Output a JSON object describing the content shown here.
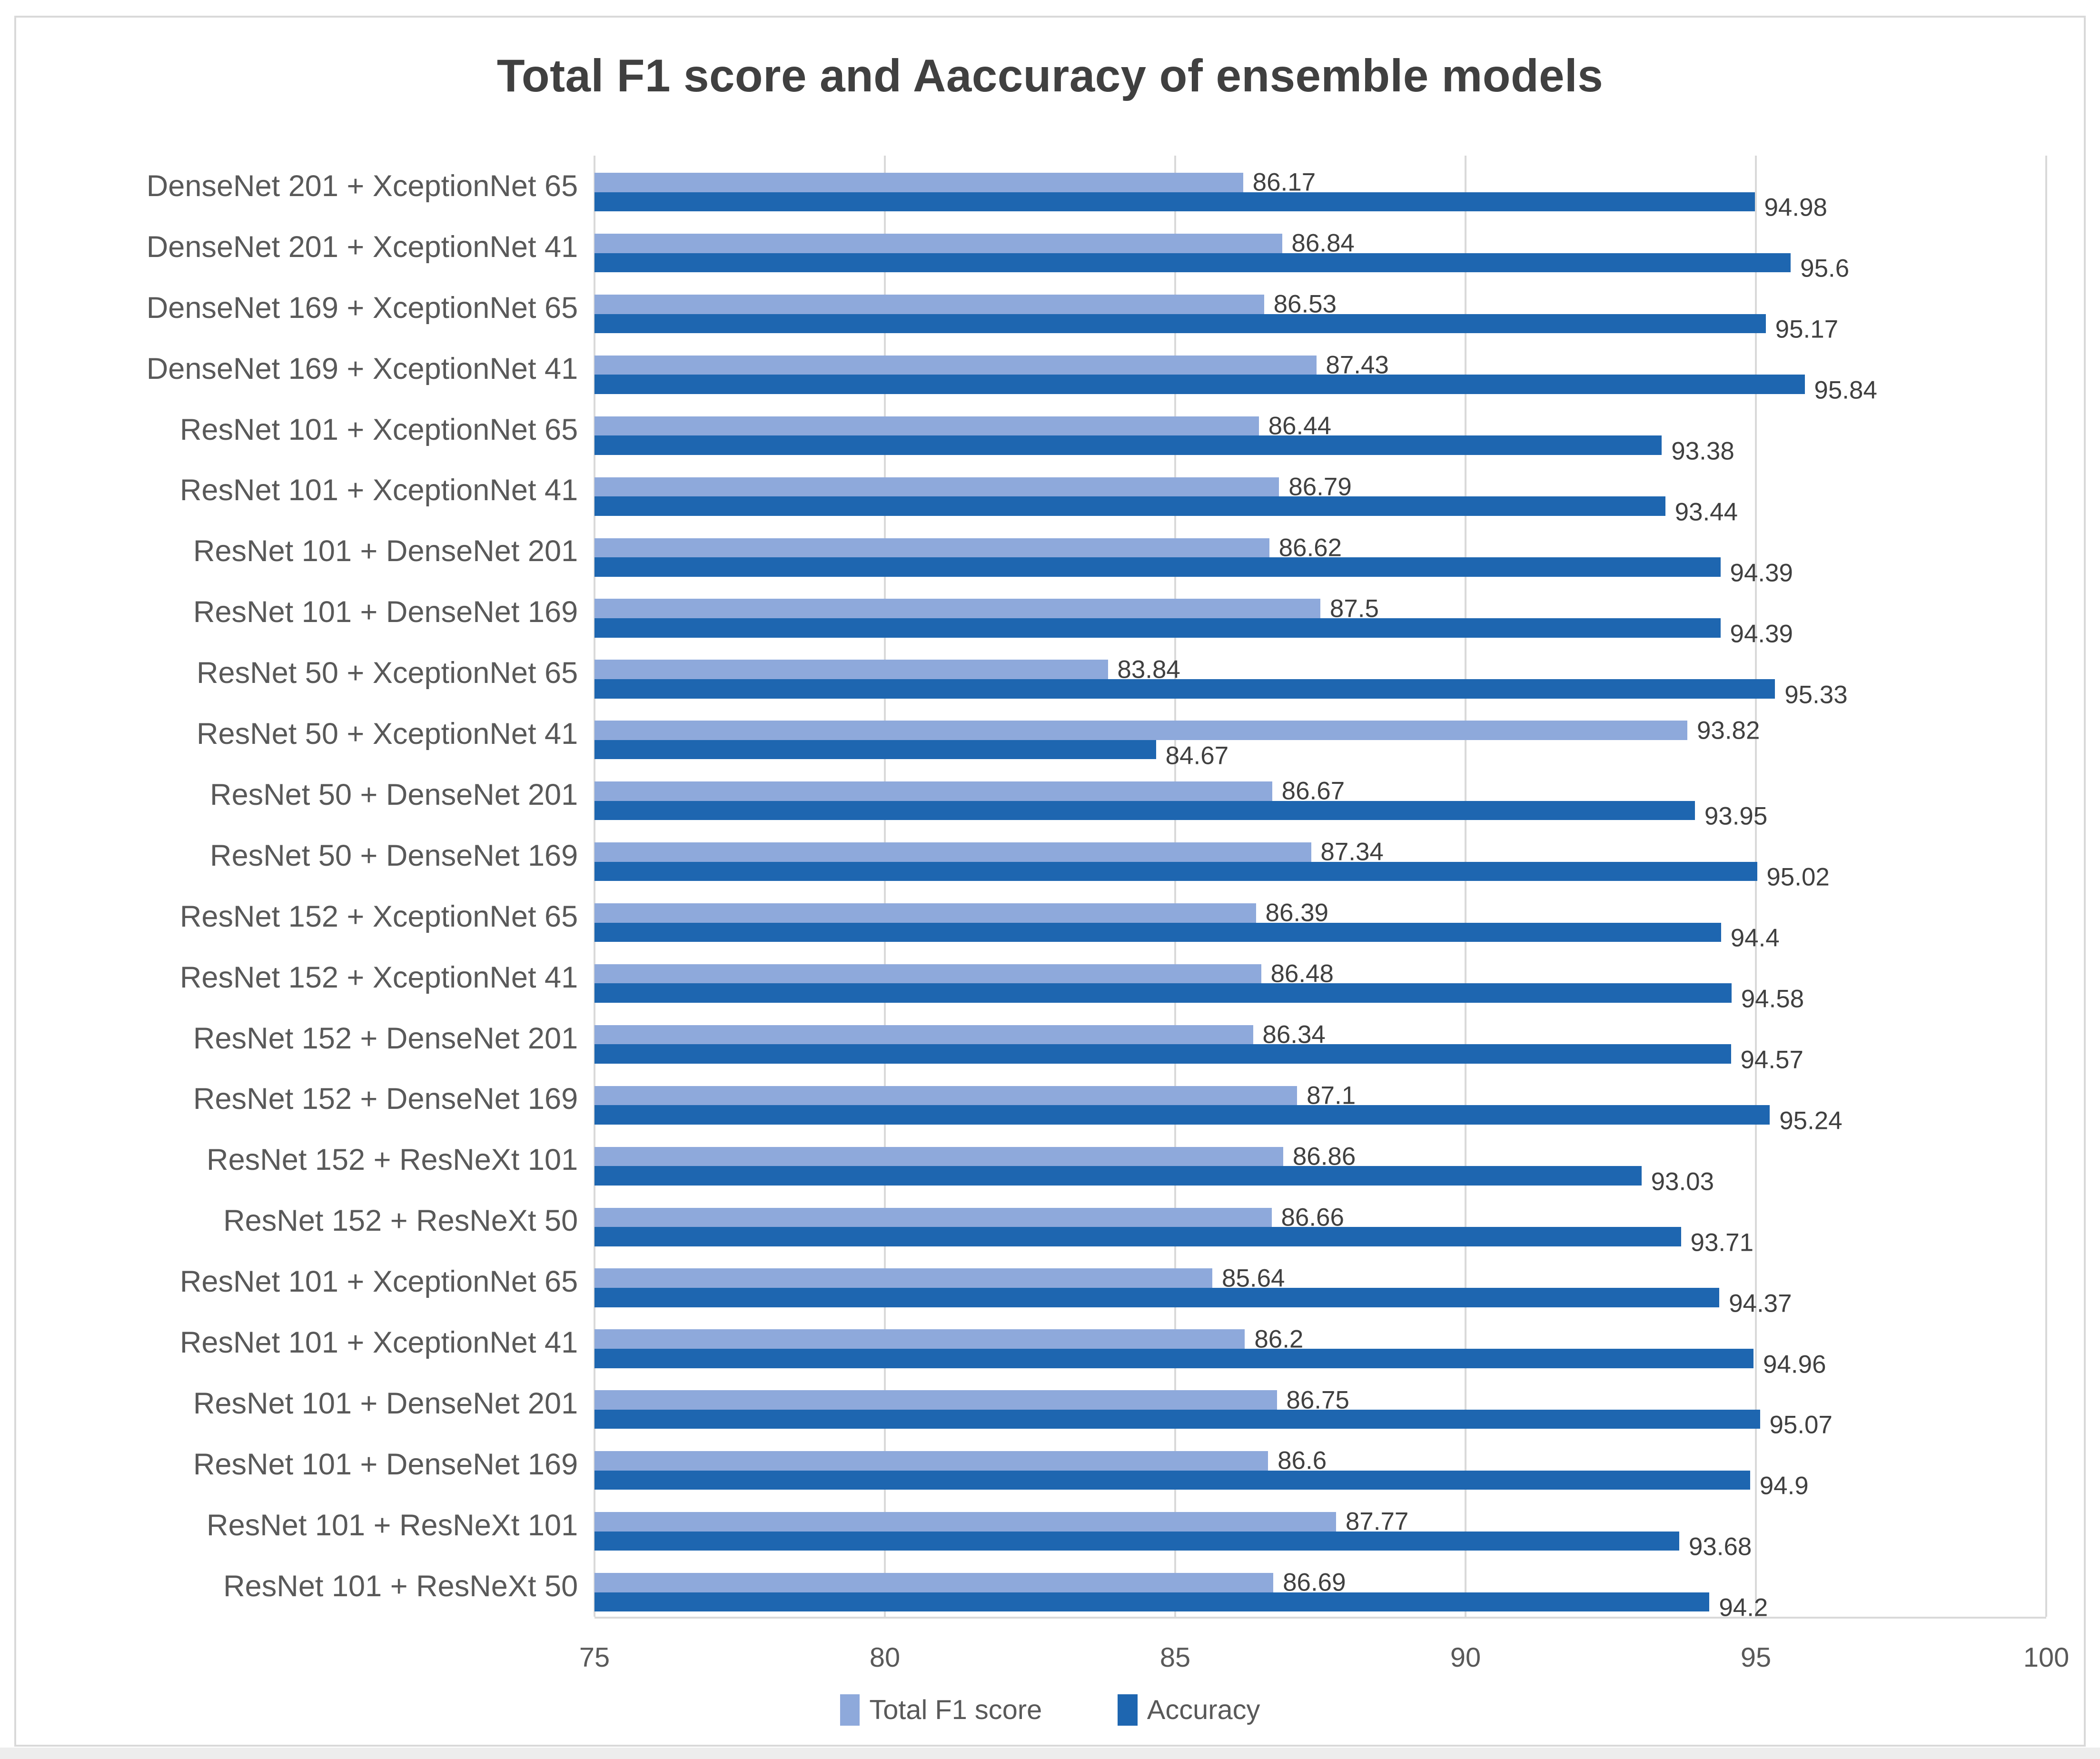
{
  "title": "Total F1 score and Aaccuracy of ensemble models",
  "chart_data": {
    "type": "bar",
    "orientation": "horizontal",
    "title": "Total F1 score and Aaccuracy of ensemble models",
    "categories": [
      "DenseNet 201 + XceptionNet 65",
      "DenseNet 201 + XceptionNet 41",
      "DenseNet 169 + XceptionNet 65",
      "DenseNet 169 + XceptionNet 41",
      "ResNet 101 + XceptionNet 65",
      "ResNet 101 + XceptionNet 41",
      "ResNet 101 + DenseNet 201",
      "ResNet 101 + DenseNet 169",
      "ResNet 50 + XceptionNet 65",
      "ResNet 50 + XceptionNet 41",
      "ResNet 50 + DenseNet 201",
      "ResNet 50 + DenseNet 169",
      "ResNet 152 + XceptionNet 65",
      "ResNet 152 + XceptionNet 41",
      "ResNet 152 + DenseNet 201",
      "ResNet 152 + DenseNet 169",
      "ResNet 152 + ResNeXt 101",
      "ResNet 152 + ResNeXt 50",
      "ResNet 101 + XceptionNet 65",
      "ResNet 101 + XceptionNet 41",
      "ResNet 101 + DenseNet 201",
      "ResNet 101 + DenseNet 169",
      "ResNet 101 + ResNeXt 101",
      "ResNet 101 + ResNeXt 50"
    ],
    "series": [
      {
        "name": "Total F1 score",
        "color": "#8EA9DB",
        "values": [
          86.17,
          86.84,
          86.53,
          87.43,
          86.44,
          86.79,
          86.62,
          87.5,
          83.84,
          93.82,
          86.67,
          87.34,
          86.39,
          86.48,
          86.34,
          87.1,
          86.86,
          86.66,
          85.64,
          86.2,
          86.75,
          86.6,
          87.77,
          86.69
        ]
      },
      {
        "name": "Accuracy",
        "color": "#1E66B0",
        "values": [
          94.98,
          95.6,
          95.17,
          95.84,
          93.38,
          93.44,
          94.39,
          94.39,
          95.33,
          84.67,
          93.95,
          95.02,
          94.4,
          94.58,
          94.57,
          95.24,
          93.03,
          93.71,
          94.37,
          94.96,
          95.07,
          94.9,
          93.68,
          94.2
        ]
      }
    ],
    "xlim": [
      75,
      100
    ],
    "xticks": [
      "75",
      "80",
      "85",
      "90",
      "95",
      "100"
    ],
    "grid": true,
    "legend_position": "bottom",
    "value_labels_shown": true
  },
  "colors": {
    "gridline": "#d9d9d9",
    "frame_border": "#d9d9d9",
    "title_text": "#404040",
    "axis_text": "#595959",
    "value_text": "#404040"
  }
}
